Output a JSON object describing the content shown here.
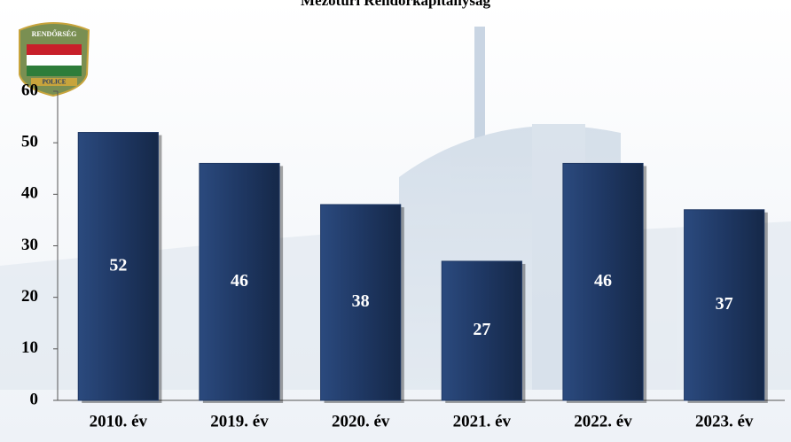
{
  "chart_data": {
    "type": "bar",
    "title": "Mezőtúri Rendőrkapitányság",
    "categories": [
      "2010. év",
      "2019. év",
      "2020. év",
      "2021. év",
      "2022. év",
      "2023. év"
    ],
    "values": [
      52,
      46,
      38,
      27,
      46,
      37
    ],
    "color": "#1f3864",
    "ylim": [
      0,
      60
    ],
    "yticks": [
      0,
      10,
      20,
      30,
      40,
      50,
      60
    ],
    "grid": false,
    "data_labels": true
  },
  "logo": {
    "top": "RENDŐRSÉG",
    "bottom": "POLICE"
  }
}
